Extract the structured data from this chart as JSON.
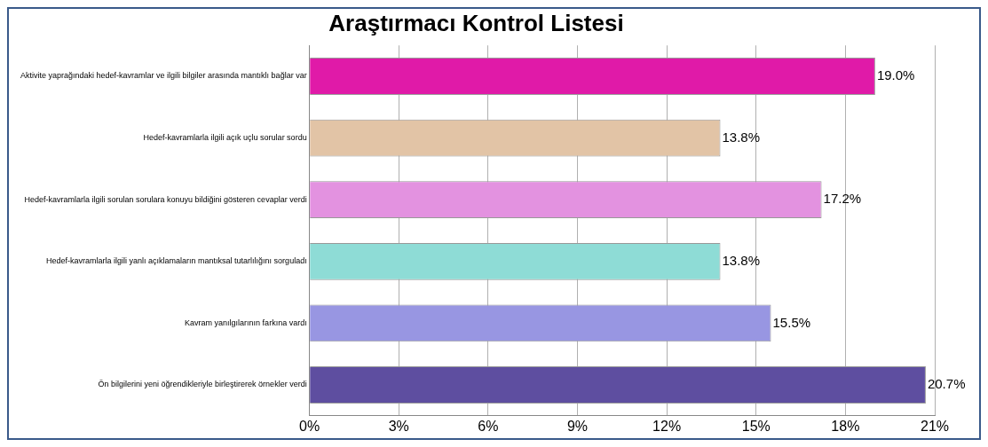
{
  "chart_data": {
    "type": "bar",
    "orientation": "horizontal",
    "title": "Araştırmacı Kontrol Listesi",
    "categories": [
      "Aktivite yaprağındaki hedef-kavramlar ve ilgili bilgiler arasında mantıklı bağlar var",
      "Hedef-kavramlarla ilgili açık uçlu sorular sordu",
      "Hedef-kavramlarla ilgili sorulan sorulara konuyu bildiğini gösteren cevaplar verdi",
      "Hedef-kavramlarla ilgili yanlı açıklamaların mantıksal tutarlılığını sorguladı",
      "Kavram yanılgılarının farkına vardı",
      "Ön bilgilerini yeni öğrendikleriyle birleştirerek örnekler verdi"
    ],
    "values": [
      19.0,
      13.8,
      17.2,
      13.8,
      15.5,
      20.7
    ],
    "value_labels": [
      "19.0%",
      "13.8%",
      "17.2%",
      "13.8%",
      "15.5%",
      "20.7%"
    ],
    "colors": [
      "#e01aa8",
      "#e2c4a6",
      "#e392e0",
      "#8edcd6",
      "#9896e2",
      "#5e4ea0"
    ],
    "xlim": [
      0,
      21
    ],
    "xticks": [
      {
        "value": 0,
        "label": "0%"
      },
      {
        "value": 3,
        "label": "3%"
      },
      {
        "value": 6,
        "label": "6%"
      },
      {
        "value": 9,
        "label": "9%"
      },
      {
        "value": 12,
        "label": "12%"
      },
      {
        "value": 15,
        "label": "15%"
      },
      {
        "value": 18,
        "label": "18%"
      },
      {
        "value": 21,
        "label": "21%"
      }
    ],
    "grid": "x",
    "legend": false
  }
}
